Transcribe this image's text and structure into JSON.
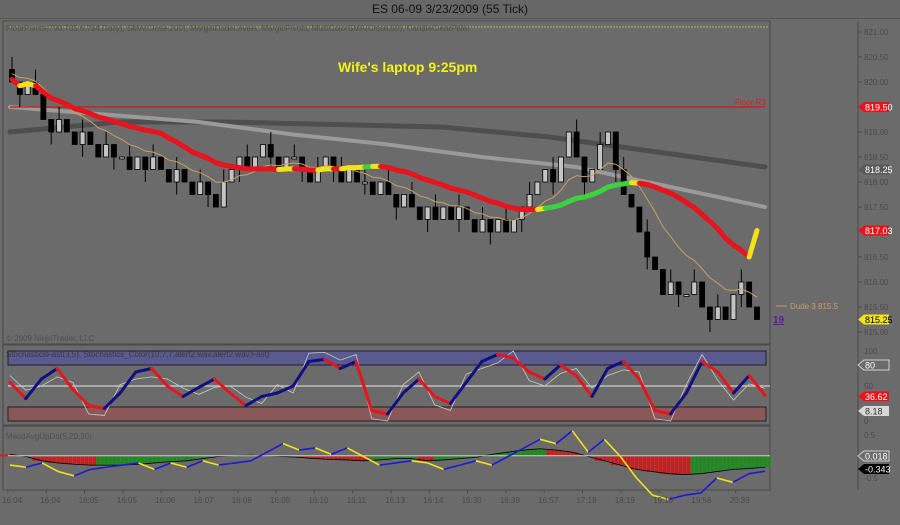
{
  "window": {
    "title": "ES 06-09  3/23/2009 (55 Tick)"
  },
  "main_panel": {
    "indicator_label": "FloorPivots(790.785,6.764,Daily), SMA(Close,200), MarginDudeLevels, MarginPivots, MultiColorSMA(Close,50), CandleClearPale)",
    "annotation": "Wife's laptop 9:25pm",
    "floor_label": "Floor R3",
    "dude_label": "Dude 3 815.5",
    "bar_count_label": "19",
    "copyright": "© 2009 NinjaTrader, LLC",
    "axis_ticks": [
      "821.00",
      "820.50",
      "820.00",
      "819.00",
      "818.50",
      "818.00",
      "817.50",
      "816.50",
      "816.00",
      "815.50",
      "815.00"
    ],
    "flags": [
      {
        "value": "819.50",
        "color": "#e8141c",
        "text_color": "#ffffff"
      },
      {
        "value": "818.25",
        "color": "#5a5a5a",
        "text_color": "#ffffff"
      },
      {
        "value": "817.03",
        "color": "#e8141c",
        "text_color": "#ffffff"
      },
      {
        "value": "815.25",
        "color": "#f2e21a",
        "text_color": "#000000"
      }
    ]
  },
  "stoch_panel": {
    "indicator_label": "StochasticsFast(3,5), Stochastics_Color(10,7,7,alert2.wav,alert2.wav,Fast)",
    "axis_ticks": [
      "100",
      "50",
      "0"
    ],
    "flags": [
      {
        "value": "80",
        "style": "outline"
      },
      {
        "value": "36.62",
        "color": "#e8141c"
      },
      {
        "value": "8.18",
        "color": "#d8d8d8"
      }
    ]
  },
  "macd_panel": {
    "indicator_label": "MacdAvgUpDn(5,20,30)",
    "axis_ticks": [
      "0.5",
      "-0.5"
    ],
    "flags": [
      {
        "value": "0.018",
        "style": "outline"
      },
      {
        "value": "-0.343",
        "color": "#000000"
      }
    ]
  },
  "time_axis": [
    "16:04",
    "16:04",
    "16:05",
    "16:05",
    "16:06",
    "16:07",
    "16:08",
    "16:09",
    "16:10",
    "16:11",
    "16:13",
    "16:14",
    "16:30",
    "16:38",
    "16:57",
    "17:18",
    "18:19",
    "19:10",
    "19:56",
    "20:39"
  ],
  "colors": {
    "background": "#6b6b6b",
    "up_candle": "#c4c4c4",
    "down_candle": "#000000",
    "sma_down": "#e8141c",
    "sma_up": "#3cd23c",
    "sma_turn": "#f2e21a",
    "stoch_up": "#101080",
    "stoch_down": "#e8141c",
    "macd_up": "#1a1ad8",
    "macd_down": "#f2e21a",
    "hist_up": "#1f8a1f",
    "hist_down": "#c81e1e"
  },
  "chart_data": [
    {
      "type": "candlestick",
      "panel": "price",
      "ylim": [
        815.0,
        821.0
      ],
      "closes": [
        820.0,
        819.75,
        820.0,
        819.75,
        819.25,
        819.0,
        819.25,
        819.0,
        818.75,
        819.0,
        818.75,
        818.5,
        818.75,
        818.5,
        818.5,
        818.25,
        818.5,
        818.25,
        818.5,
        818.25,
        818.0,
        818.25,
        818.0,
        817.75,
        818.0,
        817.75,
        817.5,
        818.0,
        818.25,
        818.5,
        818.25,
        818.5,
        818.75,
        818.5,
        818.25,
        818.5,
        818.5,
        818.25,
        818.0,
        818.25,
        818.5,
        818.25,
        818.0,
        818.25,
        818.0,
        818.0,
        817.75,
        818.0,
        817.75,
        817.5,
        817.75,
        817.5,
        817.25,
        817.5,
        817.25,
        817.5,
        817.25,
        817.5,
        817.25,
        817.0,
        817.25,
        817.0,
        817.25,
        817.0,
        817.25,
        817.5,
        817.75,
        818.0,
        818.25,
        818.0,
        818.5,
        819.0,
        818.5,
        818.0,
        818.25,
        818.75,
        819.0,
        818.25,
        817.75,
        817.5,
        817.0,
        816.5,
        816.25,
        815.75,
        816.0,
        815.75,
        815.75,
        816.0,
        815.5,
        815.25,
        815.5,
        815.25,
        815.75,
        816.0,
        815.5,
        815.25
      ],
      "floor_r3": 819.5,
      "sma200_dark": [
        819.0,
        819.2,
        819.2,
        819.15,
        819.1,
        818.9,
        818.6,
        818.3
      ],
      "sma_light": [
        819.5,
        819.35,
        819.2,
        818.95,
        818.75,
        818.5,
        818.3,
        817.9,
        817.5
      ],
      "last_multicolor_sma": 817.03
    },
    {
      "type": "line",
      "panel": "stochastics",
      "ylim": [
        0,
        100
      ],
      "d": [
        55,
        32,
        60,
        75,
        45,
        22,
        18,
        40,
        70,
        75,
        50,
        35,
        48,
        60,
        40,
        22,
        35,
        40,
        50,
        85,
        88,
        75,
        85,
        15,
        10,
        40,
        60,
        35,
        25,
        55,
        85,
        95,
        90,
        70,
        60,
        80,
        65,
        35,
        75,
        85,
        60,
        15,
        10,
        40,
        85,
        70,
        40,
        65,
        36.62
      ],
      "levels": [
        80,
        50,
        20
      ]
    },
    {
      "type": "line",
      "panel": "macd",
      "ylim": [
        -1.0,
        0.6
      ],
      "avg": [
        0.05,
        0,
        -0.1,
        -0.15,
        -0.18,
        -0.2,
        -0.2,
        -0.2,
        -0.18,
        -0.15,
        -0.12,
        -0.1,
        -0.05,
        0,
        0.02,
        0.03,
        0.02,
        0,
        -0.02,
        -0.05,
        -0.07,
        -0.08,
        -0.1,
        -0.08,
        -0.05,
        -0.05,
        -0.1,
        -0.08,
        -0.05,
        -0.02,
        0.05,
        0.1,
        0.15,
        0.18,
        0.15,
        0.1,
        0.0,
        -0.1,
        -0.2,
        -0.3,
        -0.35,
        -0.4,
        -0.42,
        -0.4,
        -0.35,
        -0.3,
        -0.28,
        -0.25
      ],
      "macd": [
        -0.2,
        -0.25,
        -0.15,
        -0.35,
        -0.45,
        -0.3,
        -0.25,
        -0.2,
        -0.15,
        -0.3,
        -0.15,
        -0.25,
        -0.1,
        -0.2,
        -0.15,
        -0.1,
        0.1,
        0.3,
        0.15,
        0.2,
        0.05,
        0.2,
        0.0,
        -0.2,
        -0.15,
        -0.1,
        -0.15,
        -0.3,
        -0.2,
        -0.1,
        -0.2,
        0.0,
        0.2,
        0.4,
        0.3,
        0.6,
        0.1,
        0.4,
        0.0,
        -0.5,
        -0.9,
        -1.0,
        -0.9,
        -0.85,
        -0.5,
        -0.6,
        -0.4,
        -0.343
      ]
    }
  ]
}
